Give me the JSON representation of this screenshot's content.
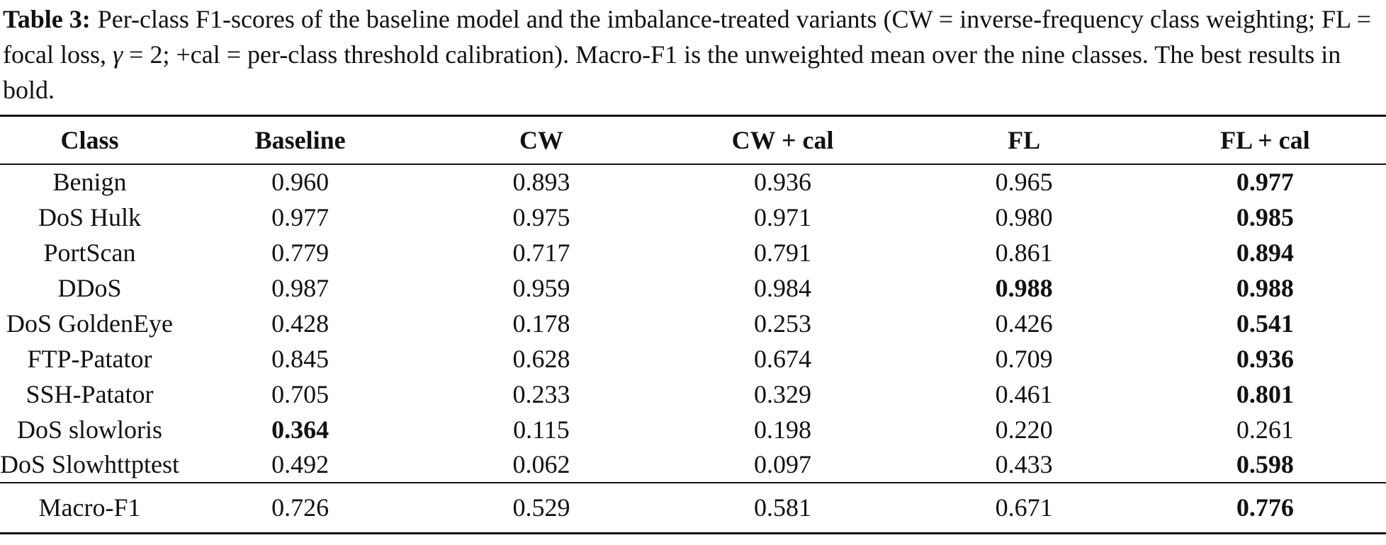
{
  "caption": {
    "label": "Table 3:",
    "text_part1": "Per-class F1-scores of the baseline model and the imbalance-treated variants (CW = inverse-frequency class weighting; FL = focal loss, ",
    "gamma": "γ",
    "text_part2": " = 2; +cal = per-class threshold calibration). Macro-F1 is the unweighted mean over the nine classes. The best results in bold."
  },
  "table": {
    "headers": [
      "Class",
      "Baseline",
      "CW",
      "CW + cal",
      "FL",
      "FL + cal"
    ],
    "rows": [
      {
        "class": "Benign",
        "values": [
          "0.960",
          "0.893",
          "0.936",
          "0.965",
          "0.977"
        ],
        "bold": [
          false,
          false,
          false,
          false,
          true
        ]
      },
      {
        "class": "DoS Hulk",
        "values": [
          "0.977",
          "0.975",
          "0.971",
          "0.980",
          "0.985"
        ],
        "bold": [
          false,
          false,
          false,
          false,
          true
        ]
      },
      {
        "class": "PortScan",
        "values": [
          "0.779",
          "0.717",
          "0.791",
          "0.861",
          "0.894"
        ],
        "bold": [
          false,
          false,
          false,
          false,
          true
        ]
      },
      {
        "class": "DDoS",
        "values": [
          "0.987",
          "0.959",
          "0.984",
          "0.988",
          "0.988"
        ],
        "bold": [
          false,
          false,
          false,
          true,
          true
        ]
      },
      {
        "class": "DoS GoldenEye",
        "values": [
          "0.428",
          "0.178",
          "0.253",
          "0.426",
          "0.541"
        ],
        "bold": [
          false,
          false,
          false,
          false,
          true
        ]
      },
      {
        "class": "FTP-Patator",
        "values": [
          "0.845",
          "0.628",
          "0.674",
          "0.709",
          "0.936"
        ],
        "bold": [
          false,
          false,
          false,
          false,
          true
        ]
      },
      {
        "class": "SSH-Patator",
        "values": [
          "0.705",
          "0.233",
          "0.329",
          "0.461",
          "0.801"
        ],
        "bold": [
          false,
          false,
          false,
          false,
          true
        ]
      },
      {
        "class": "DoS slowloris",
        "values": [
          "0.364",
          "0.115",
          "0.198",
          "0.220",
          "0.261"
        ],
        "bold": [
          true,
          false,
          false,
          false,
          false
        ]
      },
      {
        "class": "DoS Slowhttptest",
        "values": [
          "0.492",
          "0.062",
          "0.097",
          "0.433",
          "0.598"
        ],
        "bold": [
          false,
          false,
          false,
          false,
          true
        ]
      }
    ],
    "summary": {
      "class": "Macro-F1",
      "values": [
        "0.726",
        "0.529",
        "0.581",
        "0.671",
        "0.776"
      ],
      "bold": [
        false,
        false,
        false,
        false,
        true
      ]
    }
  }
}
